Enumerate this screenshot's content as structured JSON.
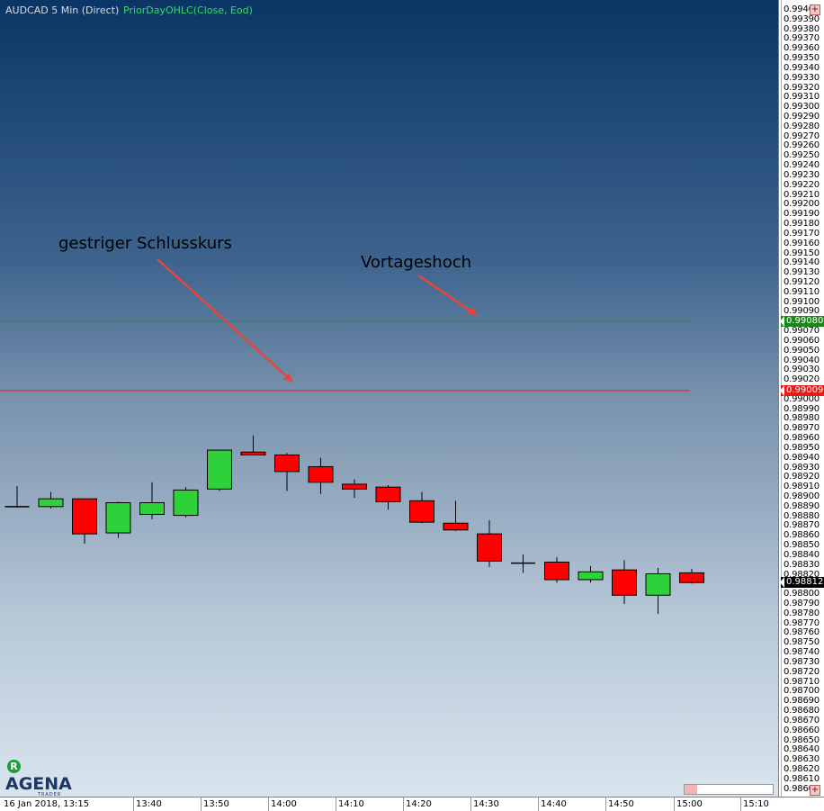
{
  "header": {
    "symbol": "AUDCAD 5 Min (Direct)",
    "indicator": "PriorDayOHLC(Close, Eod)"
  },
  "annotations": {
    "close_label": "gestriger Schlusskurs",
    "high_label": "Vortageshoch"
  },
  "logo": {
    "text": "AGENA",
    "subtext": "TRADER",
    "badge": "R"
  },
  "colors": {
    "up_candle": "#2fd13b",
    "down_candle": "#ff0000",
    "prior_high_line": "#1b9a1b",
    "prior_close_line": "#e61d1d",
    "arrow": "#e8453a"
  },
  "price_tags": {
    "prior_high": "0.99080",
    "prior_close": "0.99009",
    "last": "0.98812"
  },
  "chart_data": {
    "type": "candlestick",
    "title": "",
    "xlabel": "",
    "ylabel": "",
    "ylim": [
      0.98595,
      0.99423
    ],
    "price_axis_labels": [
      "0.9940",
      "0.99390",
      "0.99380",
      "0.99370",
      "0.99360",
      "0.99350",
      "0.99340",
      "0.99330",
      "0.99320",
      "0.99310",
      "0.99300",
      "0.99290",
      "0.99280",
      "0.99270",
      "0.99260",
      "0.99250",
      "0.99240",
      "0.99230",
      "0.99220",
      "0.99210",
      "0.99200",
      "0.99190",
      "0.99180",
      "0.99170",
      "0.99160",
      "0.99150",
      "0.99140",
      "0.99130",
      "0.99120",
      "0.99110",
      "0.99100",
      "0.99090",
      "0.99080",
      "0.99070",
      "0.99060",
      "0.99050",
      "0.99040",
      "0.99030",
      "0.99020",
      "0.99010",
      "0.99000",
      "0.98990",
      "0.98980",
      "0.98970",
      "0.98960",
      "0.98950",
      "0.98940",
      "0.98930",
      "0.98920",
      "0.98910",
      "0.98900",
      "0.98890",
      "0.98880",
      "0.98870",
      "0.98860",
      "0.98850",
      "0.98840",
      "0.98830",
      "0.98820",
      "0.98810",
      "0.98800",
      "0.98790",
      "0.98780",
      "0.98770",
      "0.98760",
      "0.98750",
      "0.98740",
      "0.98730",
      "0.98720",
      "0.98710",
      "0.98700",
      "0.98690",
      "0.98680",
      "0.98670",
      "0.98660",
      "0.98650",
      "0.98640",
      "0.98630",
      "0.98620",
      "0.98610",
      "0.98600"
    ],
    "time_labels": [
      "16 Jan 2018, 13:15",
      "13:40",
      "13:50",
      "14:00",
      "14:10",
      "14:20",
      "14:30",
      "14:40",
      "14:50",
      "15:00",
      "15:10"
    ],
    "prior_day_high": 0.9908,
    "prior_day_close": 0.99009,
    "last_price": 0.98812,
    "candles": [
      {
        "time": "13:15",
        "open": 0.9889,
        "high": 0.98911,
        "low": 0.98889,
        "close": 0.9889
      },
      {
        "time": "13:20",
        "open": 0.9889,
        "high": 0.98905,
        "low": 0.98888,
        "close": 0.98898
      },
      {
        "time": "13:25",
        "open": 0.98898,
        "high": 0.98898,
        "low": 0.98852,
        "close": 0.98862
      },
      {
        "time": "13:30",
        "open": 0.98863,
        "high": 0.98895,
        "low": 0.98858,
        "close": 0.98894
      },
      {
        "time": "13:35",
        "open": 0.98882,
        "high": 0.98915,
        "low": 0.98877,
        "close": 0.98894
      },
      {
        "time": "13:40",
        "open": 0.98881,
        "high": 0.9891,
        "low": 0.98879,
        "close": 0.98907
      },
      {
        "time": "13:45",
        "open": 0.98908,
        "high": 0.98948,
        "low": 0.98906,
        "close": 0.98948
      },
      {
        "time": "13:50",
        "open": 0.98946,
        "high": 0.98963,
        "low": 0.98943,
        "close": 0.98943
      },
      {
        "time": "13:55",
        "open": 0.98943,
        "high": 0.98945,
        "low": 0.98906,
        "close": 0.98926
      },
      {
        "time": "14:00",
        "open": 0.98931,
        "high": 0.9894,
        "low": 0.98903,
        "close": 0.98915
      },
      {
        "time": "14:05",
        "open": 0.98913,
        "high": 0.98918,
        "low": 0.98899,
        "close": 0.98908
      },
      {
        "time": "14:10",
        "open": 0.9891,
        "high": 0.98912,
        "low": 0.98887,
        "close": 0.98895
      },
      {
        "time": "14:15",
        "open": 0.98896,
        "high": 0.98905,
        "low": 0.98873,
        "close": 0.98874
      },
      {
        "time": "14:20",
        "open": 0.98873,
        "high": 0.98896,
        "low": 0.98865,
        "close": 0.98866
      },
      {
        "time": "14:25",
        "open": 0.98862,
        "high": 0.98876,
        "low": 0.98828,
        "close": 0.98834
      },
      {
        "time": "14:30",
        "open": 0.98832,
        "high": 0.98841,
        "low": 0.98822,
        "close": 0.98832
      },
      {
        "time": "14:35",
        "open": 0.98833,
        "high": 0.98838,
        "low": 0.98812,
        "close": 0.98815
      },
      {
        "time": "14:40",
        "open": 0.98815,
        "high": 0.98829,
        "low": 0.98812,
        "close": 0.98823
      },
      {
        "time": "14:45",
        "open": 0.98825,
        "high": 0.98835,
        "low": 0.9879,
        "close": 0.98799
      },
      {
        "time": "14:50",
        "open": 0.98799,
        "high": 0.98827,
        "low": 0.9878,
        "close": 0.98821
      },
      {
        "time": "14:55",
        "open": 0.98822,
        "high": 0.98826,
        "low": 0.98811,
        "close": 0.98812
      }
    ],
    "grid": false,
    "legend": "none"
  }
}
